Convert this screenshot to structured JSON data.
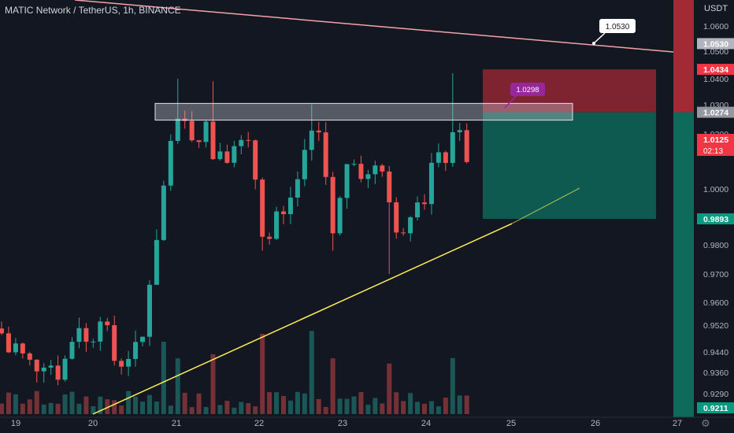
{
  "header": {
    "symbol_title": "MATIC Network / TetherUS, 1h, BINANCE"
  },
  "price_scale": {
    "currency": "USDT",
    "ticks": [
      "1.0600",
      "1.0500",
      "1.0400",
      "1.0300",
      "1.0200",
      "1.0000",
      "0.9800",
      "0.9700",
      "0.9600",
      "0.9520",
      "0.9440",
      "0.9360",
      "0.9290"
    ]
  },
  "price_tags": {
    "line_level": {
      "label": "1.0530",
      "color": "#b2b5be"
    },
    "stop_level": {
      "label": "1.0434",
      "color": "#f23645"
    },
    "entry_level": {
      "label": "1.0274",
      "color": "#9598a1"
    },
    "last_price": {
      "label": "1.0125",
      "countdown": "02:13",
      "color": "#f23645"
    },
    "target_level": {
      "label": "0.9893",
      "color": "#089981"
    },
    "bottom_level": {
      "label": "0.9211",
      "color": "#089981"
    }
  },
  "time_axis": {
    "labels": [
      "19",
      "20",
      "21",
      "22",
      "23",
      "24",
      "25",
      "26",
      "27"
    ]
  },
  "annotations": {
    "callout_resistance": "1.0530",
    "callout_zone": "1.0298"
  },
  "colors": {
    "background": "#131722",
    "up": "#26a69a",
    "down": "#ef5350",
    "resistance_line": "#f7a1a8",
    "support_line": "#ffee58",
    "zone": "#d1d4dc",
    "stop_fill": "#a12a35",
    "target_fill": "#0e6b5c",
    "callout_purple": "#9c27b0"
  },
  "icons": {
    "settings": "gear-icon"
  }
}
